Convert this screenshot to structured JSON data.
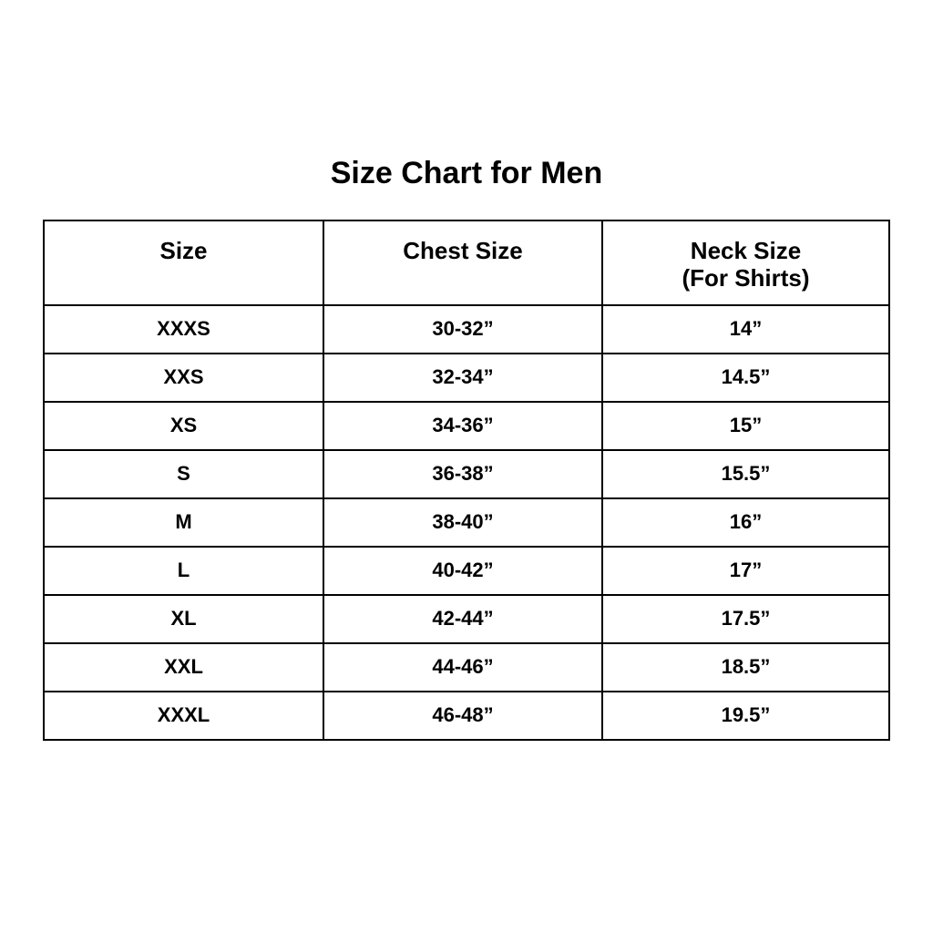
{
  "colors": {
    "background": "#ffffff",
    "text": "#000000",
    "border": "#000000"
  },
  "chart_data": {
    "type": "table",
    "title": "Size Chart for Men",
    "columns": [
      "Size",
      "Chest Size",
      "Neck Size\n(For Shirts)"
    ],
    "rows": [
      [
        "XXXS",
        "30-32”",
        "14”"
      ],
      [
        "XXS",
        "32-34”",
        "14.5”"
      ],
      [
        "XS",
        "34-36”",
        "15”"
      ],
      [
        "S",
        "36-38”",
        "15.5”"
      ],
      [
        "M",
        "38-40”",
        "16”"
      ],
      [
        "L",
        "40-42”",
        "17”"
      ],
      [
        "XL",
        "42-44”",
        "17.5”"
      ],
      [
        "XXL",
        "44-46”",
        "18.5”"
      ],
      [
        "XXXL",
        "46-48”",
        "19.5”"
      ]
    ]
  }
}
